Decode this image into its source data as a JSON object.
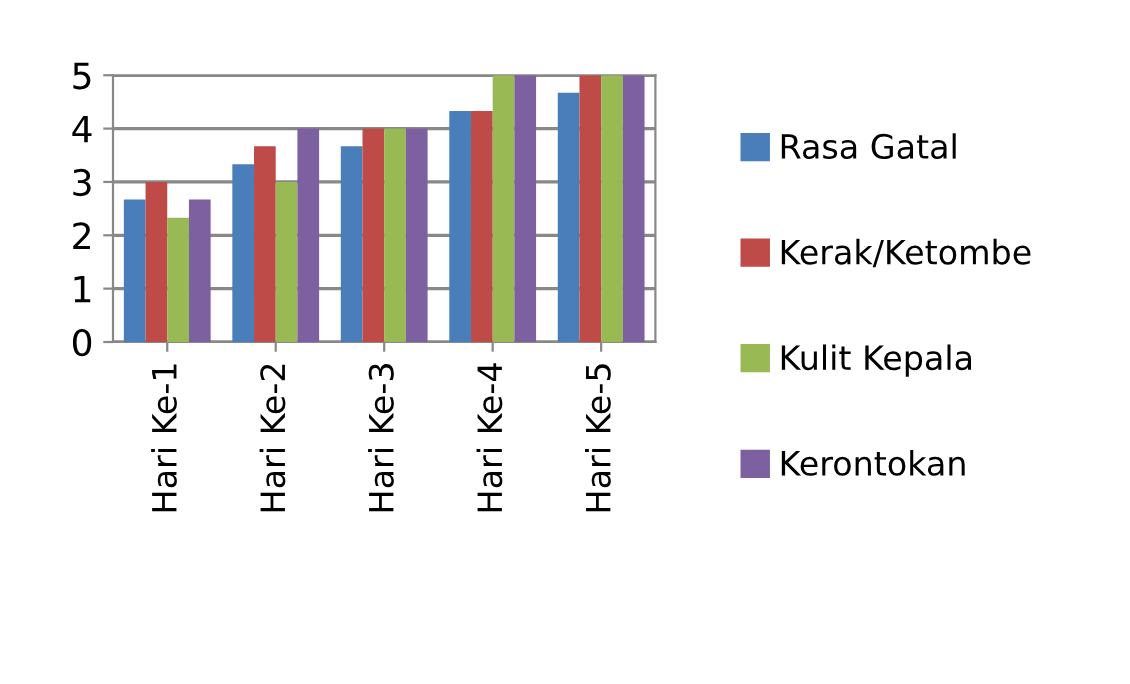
{
  "chart_data": {
    "type": "bar",
    "categories": [
      "Hari Ke-1",
      "Hari Ke-2",
      "Hari Ke-3",
      "Hari Ke-4",
      "Hari Ke-5"
    ],
    "series": [
      {
        "name": "Rasa Gatal",
        "color": "#4a7ebb",
        "values": [
          2.67,
          3.33,
          3.67,
          4.33,
          4.67
        ]
      },
      {
        "name": "Kerak/Ketombe",
        "color": "#be4b48",
        "values": [
          3,
          3.67,
          4,
          4.33,
          5
        ]
      },
      {
        "name": "Kulit Kepala",
        "color": "#98b954",
        "values": [
          2.33,
          3,
          4,
          5,
          5
        ]
      },
      {
        "name": "Kerontokan",
        "color": "#7d60a0",
        "values": [
          2.67,
          4,
          4,
          5,
          5
        ]
      }
    ],
    "ylim": [
      0,
      5
    ],
    "yticks": [
      0,
      1,
      2,
      3,
      4,
      5
    ],
    "grid": "y",
    "legend": "right"
  }
}
